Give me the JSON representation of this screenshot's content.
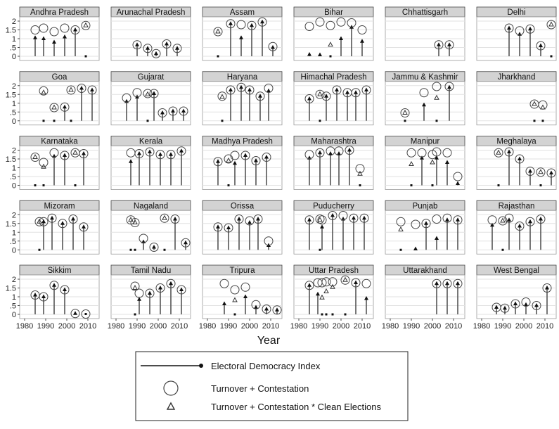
{
  "chart_data": {
    "type": "scatter",
    "subtype": "faceted lollipop",
    "xlabel": "Year",
    "xlim": [
      1978,
      2015
    ],
    "ylim": [
      -0.1,
      2.2
    ],
    "x_ticks": [
      "1980",
      "1990",
      "2000",
      "2010"
    ],
    "x_tick_values": [
      1980,
      1990,
      2000,
      2010
    ],
    "y_ticks": [
      "2",
      "1.5",
      "1",
      ".5",
      "0"
    ],
    "y_tick_values": [
      2,
      1.5,
      1,
      0.5,
      0
    ],
    "grid": true,
    "point_format": "[year, electoral_democracy_index, turnover_contestation, turnover_contestation_clean_elections (null = same as index)]",
    "legend": {
      "placement": "bottom",
      "items": [
        {
          "label": "Electoral Democracy Index",
          "symbol": "lollipop"
        },
        {
          "label": "Turnover + Contestation",
          "symbol": "circle"
        },
        {
          "label": "Turnover + Contestation * Clean Elections",
          "symbol": "triangle"
        }
      ]
    },
    "panels": [
      {
        "state": "Andhra Pradesh",
        "points": [
          [
            1985,
            1.05,
            1.5,
            null
          ],
          [
            1989,
            1.0,
            1.6,
            null
          ],
          [
            1994,
            0.8,
            1.4,
            null
          ],
          [
            1999,
            1.1,
            1.6,
            null
          ],
          [
            2004,
            1.5,
            1.5,
            null
          ],
          [
            2009,
            0,
            1.75,
            1.75
          ]
        ]
      },
      {
        "state": "Arunachal Pradesh",
        "points": [
          [
            1990,
            0.65,
            0.65,
            null
          ],
          [
            1995,
            0.45,
            0.45,
            null
          ],
          [
            1999,
            0.15,
            0.15,
            null
          ],
          [
            2004,
            0.7,
            0.7,
            null
          ],
          [
            2009,
            0.45,
            0.45,
            null
          ]
        ]
      },
      {
        "state": "Assam",
        "points": [
          [
            1985,
            0,
            1.4,
            1.4
          ],
          [
            1991,
            1.85,
            1.85,
            null
          ],
          [
            1996,
            1.05,
            1.8,
            null
          ],
          [
            2001,
            1.75,
            1.75,
            null
          ],
          [
            2006,
            1.95,
            1.95,
            null
          ],
          [
            2011,
            0.5,
            0.55,
            null
          ]
        ]
      },
      {
        "state": "Bihar",
        "points": [
          [
            1985,
            0.1,
            1.7,
            null
          ],
          [
            1990,
            0.08,
            1.95,
            null
          ],
          [
            1995,
            0,
            1.75,
            0.65
          ],
          [
            2000,
            1.0,
            1.95,
            null
          ],
          [
            2005,
            1.65,
            1.9,
            null
          ],
          [
            2010,
            0.85,
            1.5,
            null
          ]
        ]
      },
      {
        "state": "Chhattisgarh",
        "points": [
          [
            2003,
            0.65,
            0.65,
            null
          ],
          [
            2008,
            0.65,
            0.65,
            null
          ]
        ]
      },
      {
        "state": "Delhi",
        "points": [
          [
            1993,
            1.6,
            1.6,
            null
          ],
          [
            1998,
            1.25,
            1.45,
            null
          ],
          [
            2003,
            1.55,
            1.55,
            null
          ],
          [
            2008,
            0.6,
            0.6,
            null
          ],
          [
            2013,
            0,
            1.8,
            1.8
          ]
        ]
      },
      {
        "state": "Goa",
        "points": [
          [
            1989,
            0,
            1.7,
            1.6
          ],
          [
            1994,
            0,
            0.75,
            0.75
          ],
          [
            1999,
            0.78,
            0.78,
            null
          ],
          [
            2002,
            0,
            1.75,
            1.75
          ],
          [
            2007,
            1.85,
            1.85,
            null
          ],
          [
            2012,
            1.75,
            1.75,
            null
          ]
        ]
      },
      {
        "state": "Gujarat",
        "points": [
          [
            1985,
            1.1,
            1.3,
            null
          ],
          [
            1990,
            1.35,
            1.6,
            null
          ],
          [
            1995,
            0,
            1.55,
            1.5
          ],
          [
            1998,
            1.55,
            1.55,
            null
          ],
          [
            2002,
            0.45,
            0.45,
            null
          ],
          [
            2007,
            0.55,
            0.55,
            null
          ],
          [
            2012,
            0.55,
            0.55,
            null
          ]
        ]
      },
      {
        "state": "Haryana",
        "points": [
          [
            1987,
            0,
            1.4,
            1.35
          ],
          [
            1991,
            1.75,
            1.75,
            null
          ],
          [
            1996,
            1.9,
            1.9,
            null
          ],
          [
            2000,
            1.75,
            1.75,
            null
          ],
          [
            2005,
            1.4,
            1.4,
            null
          ],
          [
            2009,
            1.7,
            1.85,
            null
          ]
        ]
      },
      {
        "state": "Himachal Pradesh",
        "points": [
          [
            1985,
            1.25,
            1.25,
            null
          ],
          [
            1990,
            0,
            1.5,
            1.5
          ],
          [
            1993,
            1.4,
            1.4,
            null
          ],
          [
            1998,
            1.75,
            1.75,
            null
          ],
          [
            2003,
            1.6,
            1.6,
            null
          ],
          [
            2007,
            1.6,
            1.6,
            null
          ],
          [
            2012,
            1.75,
            1.75,
            null
          ]
        ]
      },
      {
        "state": "Jammu & Kashmir",
        "points": [
          [
            1987,
            0,
            0.45,
            0.45
          ],
          [
            1996,
            0.9,
            1.6,
            null
          ],
          [
            2002,
            0,
            1.95,
            1.3
          ],
          [
            2008,
            1.9,
            1.95,
            null
          ]
        ]
      },
      {
        "state": "Jharkhand",
        "points": [
          [
            2005,
            0,
            0.95,
            0.95
          ],
          [
            2009,
            0,
            0.9,
            0.75
          ]
        ]
      },
      {
        "state": "Karnataka",
        "points": [
          [
            1985,
            0,
            1.6,
            1.6
          ],
          [
            1989,
            0,
            1.3,
            1.05
          ],
          [
            1994,
            1.65,
            1.85,
            null
          ],
          [
            1999,
            1.7,
            1.7,
            null
          ],
          [
            2004,
            0,
            1.85,
            1.85
          ],
          [
            2008,
            1.8,
            1.8,
            null
          ]
        ]
      },
      {
        "state": "Kerala",
        "points": [
          [
            1987,
            1.35,
            1.85,
            null
          ],
          [
            1991,
            1.8,
            1.8,
            null
          ],
          [
            1996,
            1.9,
            1.9,
            null
          ],
          [
            2001,
            1.75,
            1.75,
            null
          ],
          [
            2006,
            1.75,
            1.75,
            null
          ],
          [
            2011,
            1.95,
            1.95,
            null
          ]
        ]
      },
      {
        "state": "Madhya Pradesh",
        "points": [
          [
            1985,
            1.35,
            1.35,
            null
          ],
          [
            1990,
            0,
            1.5,
            1.4
          ],
          [
            1993,
            1.25,
            1.7,
            null
          ],
          [
            1998,
            1.7,
            1.7,
            null
          ],
          [
            2003,
            1.4,
            1.4,
            null
          ],
          [
            2008,
            1.6,
            1.6,
            null
          ]
        ]
      },
      {
        "state": "Maharashtra",
        "points": [
          [
            1985,
            1.55,
            1.75,
            null
          ],
          [
            1990,
            1.85,
            1.85,
            null
          ],
          [
            1995,
            1.8,
            1.95,
            null
          ],
          [
            1999,
            1.8,
            1.95,
            null
          ],
          [
            2004,
            2.0,
            2.0,
            null
          ],
          [
            2009,
            0,
            0.95,
            0.65
          ]
        ]
      },
      {
        "state": "Manipur",
        "points": [
          [
            1990,
            0,
            1.85,
            1.2
          ],
          [
            1995,
            1.55,
            1.85,
            null
          ],
          [
            2000,
            0,
            1.75,
            1.3
          ],
          [
            2002,
            1.55,
            1.9,
            null
          ],
          [
            2007,
            1.3,
            1.85,
            null
          ],
          [
            2012,
            0.1,
            0.5,
            null
          ]
        ]
      },
      {
        "state": "Meghalaya",
        "points": [
          [
            1988,
            0,
            1.85,
            1.85
          ],
          [
            1993,
            1.9,
            1.9,
            null
          ],
          [
            1998,
            1.5,
            1.5,
            null
          ],
          [
            2003,
            0.8,
            0.8,
            null
          ],
          [
            2008,
            0,
            0.75,
            0.75
          ],
          [
            2013,
            0.7,
            0.7,
            null
          ]
        ]
      },
      {
        "state": "Mizoram",
        "points": [
          [
            1987,
            0,
            1.6,
            1.6
          ],
          [
            1989,
            1.6,
            1.6,
            null
          ],
          [
            1993,
            1.8,
            1.8,
            null
          ],
          [
            1998,
            1.5,
            1.5,
            null
          ],
          [
            2003,
            1.75,
            1.75,
            null
          ],
          [
            2008,
            1.3,
            1.3,
            null
          ]
        ]
      },
      {
        "state": "Nagaland",
        "points": [
          [
            1987,
            0,
            1.7,
            1.7
          ],
          [
            1989,
            0,
            1.55,
            1.55
          ],
          [
            1993,
            0.45,
            0.65,
            null
          ],
          [
            1998,
            0.15,
            0.15,
            null
          ],
          [
            2003,
            0,
            1.8,
            1.8
          ],
          [
            2008,
            1.75,
            1.75,
            null
          ],
          [
            2013,
            0.4,
            0.4,
            null
          ]
        ]
      },
      {
        "state": "Orissa",
        "points": [
          [
            1985,
            1.3,
            1.3,
            null
          ],
          [
            1990,
            1.25,
            1.25,
            null
          ],
          [
            1995,
            1.75,
            1.75,
            null
          ],
          [
            2000,
            1.55,
            1.65,
            null
          ],
          [
            2004,
            1.75,
            1.75,
            null
          ],
          [
            2009,
            0.25,
            0.5,
            null
          ]
        ]
      },
      {
        "state": "Puducherry",
        "points": [
          [
            1985,
            1.7,
            1.7,
            null
          ],
          [
            1990,
            0,
            1.75,
            1.7
          ],
          [
            1991,
            1.3,
            1.7,
            null
          ],
          [
            1996,
            1.95,
            1.95,
            null
          ],
          [
            2001,
            1.75,
            1.95,
            null
          ],
          [
            2006,
            1.8,
            1.8,
            null
          ],
          [
            2011,
            1.8,
            1.8,
            null
          ]
        ]
      },
      {
        "state": "Punjab",
        "points": [
          [
            1985,
            0,
            1.6,
            1.15
          ],
          [
            1992,
            0.05,
            1.45,
            null
          ],
          [
            1997,
            1.5,
            1.5,
            null
          ],
          [
            2002,
            0.65,
            1.75,
            null
          ],
          [
            2007,
            1.7,
            1.8,
            null
          ],
          [
            2012,
            1.7,
            1.7,
            null
          ]
        ]
      },
      {
        "state": "Rajasthan",
        "points": [
          [
            1985,
            1.4,
            1.7,
            null
          ],
          [
            1990,
            0,
            1.65,
            1.65
          ],
          [
            1993,
            1.7,
            1.8,
            null
          ],
          [
            1998,
            1.35,
            1.35,
            null
          ],
          [
            2003,
            1.6,
            1.6,
            null
          ],
          [
            2008,
            1.75,
            1.75,
            null
          ]
        ]
      },
      {
        "state": "Sikkim",
        "points": [
          [
            1985,
            1.1,
            1.1,
            null
          ],
          [
            1989,
            1.0,
            1.0,
            null
          ],
          [
            1994,
            1.65,
            1.65,
            null
          ],
          [
            1999,
            1.4,
            1.4,
            null
          ],
          [
            2004,
            0.05,
            0.05,
            null
          ],
          [
            2009,
            0.02,
            0.02,
            null
          ]
        ]
      },
      {
        "state": "Tamil Nadu",
        "points": [
          [
            1989,
            0,
            1.6,
            1.5
          ],
          [
            1991,
            0.85,
            1.2,
            null
          ],
          [
            1996,
            1.2,
            1.2,
            null
          ],
          [
            2001,
            1.5,
            1.5,
            null
          ],
          [
            2006,
            1.75,
            1.75,
            null
          ],
          [
            2011,
            1.4,
            1.4,
            null
          ]
        ]
      },
      {
        "state": "Tripura",
        "points": [
          [
            1988,
            0.6,
            1.75,
            null
          ],
          [
            1993,
            0,
            1.4,
            0.8
          ],
          [
            1998,
            1.0,
            1.55,
            null
          ],
          [
            2003,
            0.4,
            0.55,
            null
          ],
          [
            2008,
            0.3,
            0.3,
            null
          ],
          [
            2013,
            0.25,
            0.25,
            null
          ]
        ]
      },
      {
        "state": "Uttar Pradesh",
        "points": [
          [
            1985,
            1.65,
            1.65,
            null
          ],
          [
            1989,
            1.15,
            1.8,
            null
          ],
          [
            1991,
            0,
            1.8,
            0.95
          ],
          [
            1993,
            0,
            1.85,
            1.3
          ],
          [
            1996,
            0,
            1.85,
            1.55
          ],
          [
            2002,
            0,
            1.95,
            1.95
          ],
          [
            2007,
            1.8,
            1.8,
            null
          ],
          [
            2012,
            0.9,
            1.75,
            null
          ]
        ]
      },
      {
        "state": "Uttarakhand",
        "points": [
          [
            2002,
            1.75,
            1.75,
            null
          ],
          [
            2007,
            1.75,
            1.75,
            null
          ],
          [
            2012,
            1.75,
            1.75,
            null
          ]
        ]
      },
      {
        "state": "West Bengal",
        "points": [
          [
            1987,
            0.4,
            0.4,
            null
          ],
          [
            1991,
            0.35,
            0.35,
            null
          ],
          [
            1996,
            0.6,
            0.6,
            null
          ],
          [
            2001,
            0.55,
            0.7,
            null
          ],
          [
            2006,
            0.5,
            0.5,
            null
          ],
          [
            2011,
            1.5,
            1.5,
            null
          ]
        ]
      }
    ]
  }
}
